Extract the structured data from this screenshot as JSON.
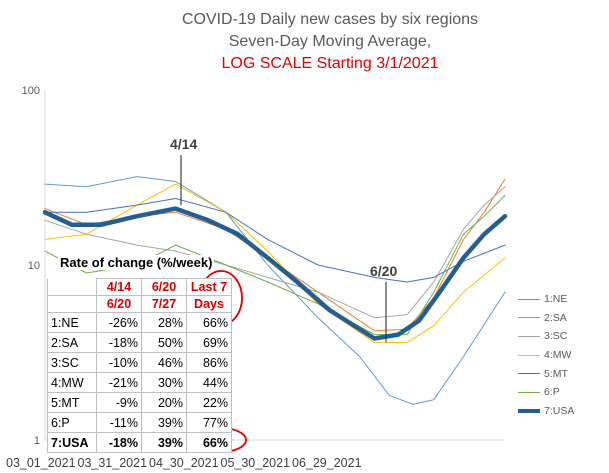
{
  "title": {
    "line1": "COVID-19 Daily new cases by six regions",
    "line2": "Seven-Day Moving Average,",
    "line3": "LOG SCALE Starting 3/1/2021"
  },
  "annotations": {
    "a414": "4/14",
    "a620": "6/20"
  },
  "table": {
    "title": "Rate of change (%/week)",
    "headers": [
      "",
      "4/14 - 6/20",
      "6/20 - 7/27",
      "Last 7 Days"
    ],
    "header_lines": [
      [
        "",
        "4/14",
        "6/20",
        "Last 7"
      ],
      [
        "",
        "6/20",
        "7/27",
        "Days"
      ]
    ],
    "rows": [
      [
        "1:NE",
        "-26%",
        "28%",
        "66%"
      ],
      [
        "2:SA",
        "-18%",
        "50%",
        "69%"
      ],
      [
        "3:SC",
        "-10%",
        "46%",
        "86%"
      ],
      [
        "4:MW",
        "-21%",
        "30%",
        "44%"
      ],
      [
        "5:MT",
        "-9%",
        "20%",
        "22%"
      ],
      [
        "6:P",
        "-11%",
        "39%",
        "77%"
      ],
      [
        "7:USA",
        "-18%",
        "39%",
        "66%"
      ]
    ]
  },
  "colors": {
    "NE": "#5b9bd5",
    "SA": "#ed7d31",
    "SC": "#a5a5a5",
    "MW": "#ffc000",
    "MT": "#4472c4",
    "P": "#70ad47",
    "USA": "#255e91",
    "highlight": "#e00000"
  },
  "chart_data": {
    "type": "line",
    "title": "COVID-19 Daily new cases by six regions Seven-Day Moving Average, LOG SCALE Starting 3/1/2021",
    "y_scale": "log",
    "ylim": [
      1,
      100
    ],
    "y_ticks": [
      "1",
      "10",
      "100"
    ],
    "x_ticks": [
      "03_01_2021",
      "03_31_2021",
      "04_30_2021",
      "05_30_2021",
      "06_29_2021"
    ],
    "x_range": [
      "2021-03-01",
      "2021-08-03"
    ],
    "legend_position": "right",
    "grid": false,
    "series": [
      {
        "name": "1:NE",
        "color_key": "NE",
        "width": 1,
        "points": [
          [
            "2021-03-01",
            29
          ],
          [
            "2021-03-15",
            28
          ],
          [
            "2021-04-01",
            32
          ],
          [
            "2021-04-14",
            30
          ],
          [
            "2021-05-01",
            20
          ],
          [
            "2021-05-15",
            10
          ],
          [
            "2021-06-01",
            5.0
          ],
          [
            "2021-06-15",
            3.0
          ],
          [
            "2021-06-25",
            1.8
          ],
          [
            "2021-07-03",
            1.6
          ],
          [
            "2021-07-10",
            1.7
          ],
          [
            "2021-07-20",
            3.0
          ],
          [
            "2021-08-03",
            7.0
          ]
        ]
      },
      {
        "name": "2:SA",
        "color_key": "SA",
        "width": 1,
        "points": [
          [
            "2021-03-01",
            21
          ],
          [
            "2021-03-15",
            17
          ],
          [
            "2021-04-01",
            19
          ],
          [
            "2021-04-14",
            20
          ],
          [
            "2021-05-01",
            16
          ],
          [
            "2021-05-15",
            11
          ],
          [
            "2021-06-01",
            7.0
          ],
          [
            "2021-06-20",
            4.2
          ],
          [
            "2021-07-01",
            4.3
          ],
          [
            "2021-07-10",
            6.5
          ],
          [
            "2021-07-20",
            14
          ],
          [
            "2021-07-27",
            20
          ],
          [
            "2021-08-03",
            31
          ]
        ]
      },
      {
        "name": "3:SC",
        "color_key": "SC",
        "width": 1,
        "points": [
          [
            "2021-03-01",
            18
          ],
          [
            "2021-03-15",
            15
          ],
          [
            "2021-04-01",
            13
          ],
          [
            "2021-04-14",
            12
          ],
          [
            "2021-05-01",
            10
          ],
          [
            "2021-05-15",
            8.5
          ],
          [
            "2021-06-01",
            7.0
          ],
          [
            "2021-06-20",
            5.0
          ],
          [
            "2021-07-01",
            5.2
          ],
          [
            "2021-07-10",
            8
          ],
          [
            "2021-07-20",
            16
          ],
          [
            "2021-07-27",
            22
          ],
          [
            "2021-08-03",
            28
          ]
        ]
      },
      {
        "name": "4:MW",
        "color_key": "MW",
        "width": 1,
        "points": [
          [
            "2021-03-01",
            14
          ],
          [
            "2021-03-15",
            15
          ],
          [
            "2021-04-01",
            22
          ],
          [
            "2021-04-14",
            29
          ],
          [
            "2021-05-01",
            20
          ],
          [
            "2021-05-15",
            12
          ],
          [
            "2021-06-01",
            6.0
          ],
          [
            "2021-06-20",
            3.6
          ],
          [
            "2021-07-01",
            3.6
          ],
          [
            "2021-07-10",
            4.5
          ],
          [
            "2021-07-20",
            7
          ],
          [
            "2021-08-03",
            11
          ]
        ]
      },
      {
        "name": "5:MT",
        "color_key": "MT",
        "width": 1,
        "points": [
          [
            "2021-03-01",
            20
          ],
          [
            "2021-03-15",
            20
          ],
          [
            "2021-04-01",
            22
          ],
          [
            "2021-04-14",
            24
          ],
          [
            "2021-05-01",
            20
          ],
          [
            "2021-05-15",
            14
          ],
          [
            "2021-06-01",
            10
          ],
          [
            "2021-06-20",
            8.5
          ],
          [
            "2021-07-01",
            8
          ],
          [
            "2021-07-10",
            8.5
          ],
          [
            "2021-07-20",
            10.5
          ],
          [
            "2021-08-03",
            13
          ]
        ]
      },
      {
        "name": "6:P",
        "color_key": "P",
        "width": 1,
        "points": [
          [
            "2021-03-01",
            12
          ],
          [
            "2021-03-15",
            9
          ],
          [
            "2021-04-01",
            10
          ],
          [
            "2021-04-14",
            13
          ],
          [
            "2021-05-01",
            10
          ],
          [
            "2021-05-15",
            8
          ],
          [
            "2021-06-01",
            6
          ],
          [
            "2021-06-20",
            4.0
          ],
          [
            "2021-07-01",
            4.0
          ],
          [
            "2021-07-10",
            7
          ],
          [
            "2021-07-20",
            15
          ],
          [
            "2021-07-27",
            19
          ],
          [
            "2021-08-03",
            25
          ]
        ]
      },
      {
        "name": "7:USA",
        "color_key": "USA",
        "width": 4.5,
        "points": [
          [
            "2021-03-01",
            20
          ],
          [
            "2021-03-10",
            17
          ],
          [
            "2021-03-20",
            17
          ],
          [
            "2021-04-01",
            19
          ],
          [
            "2021-04-14",
            21
          ],
          [
            "2021-04-25",
            18
          ],
          [
            "2021-05-05",
            15
          ],
          [
            "2021-05-15",
            11
          ],
          [
            "2021-05-25",
            8
          ],
          [
            "2021-06-05",
            5.5
          ],
          [
            "2021-06-20",
            3.8
          ],
          [
            "2021-06-28",
            4.0
          ],
          [
            "2021-07-05",
            4.8
          ],
          [
            "2021-07-12",
            7
          ],
          [
            "2021-07-20",
            11
          ],
          [
            "2021-07-27",
            15
          ],
          [
            "2021-08-03",
            19
          ]
        ]
      }
    ]
  }
}
